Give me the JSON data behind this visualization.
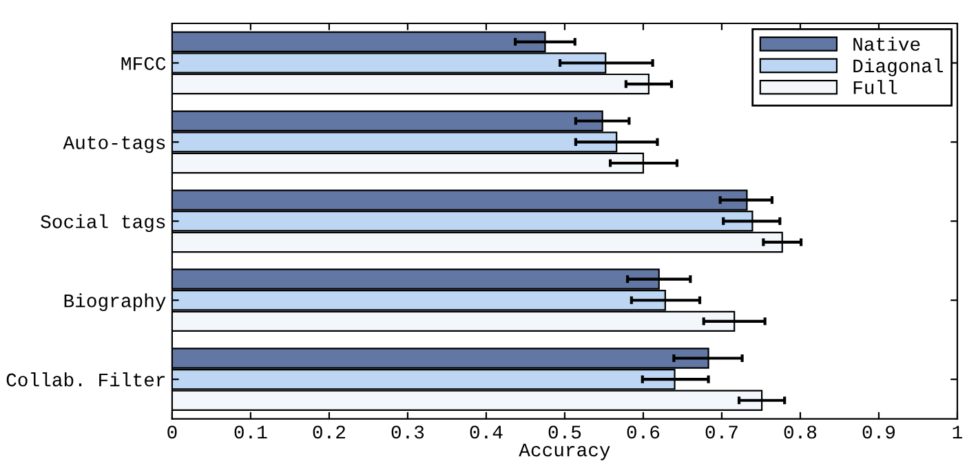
{
  "chart_data": {
    "type": "bar",
    "orientation": "horizontal",
    "xlabel": "Accuracy",
    "categories": [
      "MFCC",
      "Auto-tags",
      "Social tags",
      "Biography",
      "Collab. Filter"
    ],
    "series": [
      {
        "name": "Native",
        "color": "#6277a3",
        "values": [
          0.475,
          0.548,
          0.732,
          0.62,
          0.683
        ],
        "errors": [
          [
            0.437,
            0.513
          ],
          [
            0.514,
            0.582
          ],
          [
            0.698,
            0.764
          ],
          [
            0.58,
            0.66
          ],
          [
            0.639,
            0.726
          ]
        ]
      },
      {
        "name": "Diagonal",
        "color": "#bcd6f3",
        "values": [
          0.552,
          0.566,
          0.739,
          0.628,
          0.64
        ],
        "errors": [
          [
            0.494,
            0.612
          ],
          [
            0.514,
            0.618
          ],
          [
            0.702,
            0.774
          ],
          [
            0.585,
            0.672
          ],
          [
            0.599,
            0.683
          ]
        ]
      },
      {
        "name": "Full",
        "color": "#f3f7fb",
        "values": [
          0.607,
          0.6,
          0.777,
          0.716,
          0.751
        ],
        "errors": [
          [
            0.578,
            0.636
          ],
          [
            0.558,
            0.643
          ],
          [
            0.753,
            0.801
          ],
          [
            0.677,
            0.755
          ],
          [
            0.722,
            0.78
          ]
        ]
      }
    ],
    "xlim": [
      0,
      1
    ],
    "xticks": [
      0,
      0.1,
      0.2,
      0.3,
      0.4,
      0.5,
      0.6,
      0.7,
      0.8,
      0.9,
      1
    ],
    "legend": "top right",
    "grid": false
  }
}
